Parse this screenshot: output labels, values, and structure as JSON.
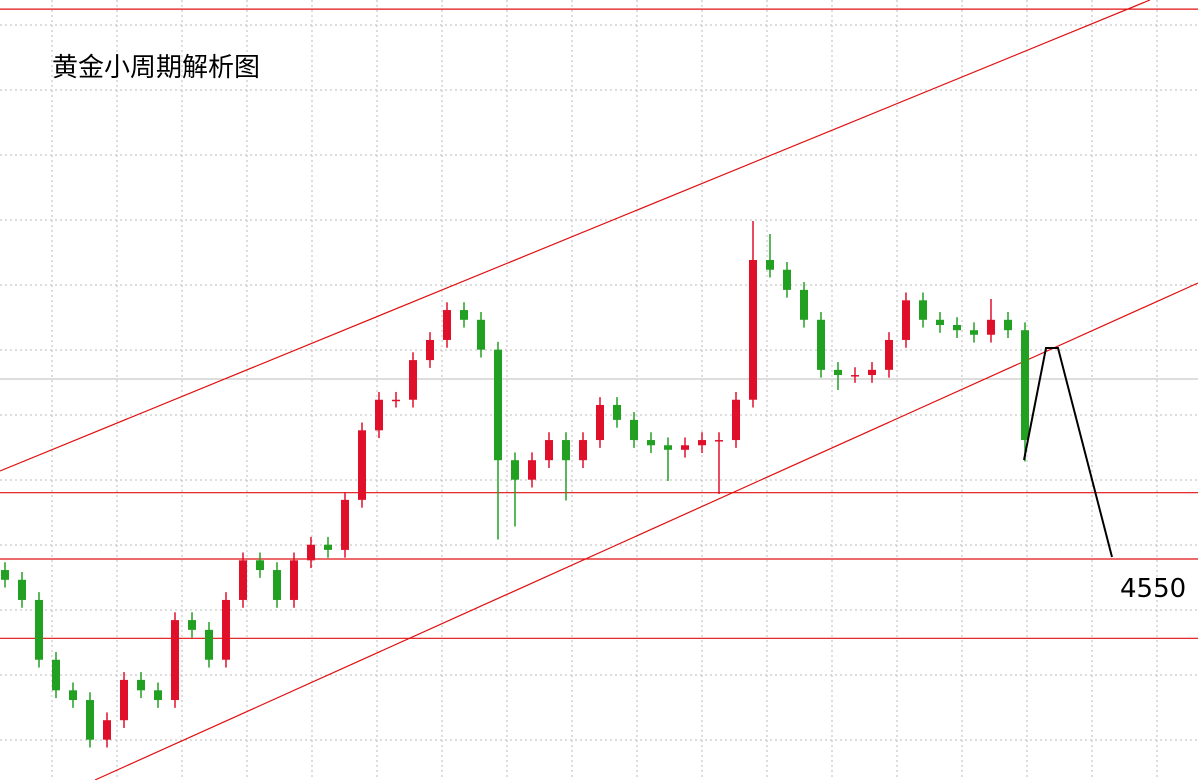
{
  "chart_data": {
    "type": "candlestick",
    "title": "黄金小周期解析图",
    "ylim": [
      4516,
      4636
    ],
    "up_color": "#e0102a",
    "down_color": "#22a022",
    "grid": true,
    "ohlc": [
      [
        4548.3,
        4549.5,
        4545.6,
        4546.8
      ],
      [
        4546.8,
        4548.0,
        4542.5,
        4543.7
      ],
      [
        4543.7,
        4544.9,
        4533.3,
        4534.5
      ],
      [
        4534.5,
        4535.7,
        4528.6,
        4529.8
      ],
      [
        4529.8,
        4531.0,
        4527.1,
        4528.3
      ],
      [
        4528.3,
        4529.5,
        4521.0,
        4522.2
      ],
      [
        4522.2,
        4526.4,
        4521.0,
        4525.2
      ],
      [
        4525.2,
        4532.6,
        4524.0,
        4531.4
      ],
      [
        4531.4,
        4532.6,
        4528.6,
        4529.8
      ],
      [
        4529.8,
        4531.0,
        4527.1,
        4528.3
      ],
      [
        4528.3,
        4541.8,
        4527.1,
        4540.6
      ],
      [
        4540.6,
        4541.8,
        4537.9,
        4539.1
      ],
      [
        4539.1,
        4540.3,
        4533.3,
        4534.5
      ],
      [
        4534.5,
        4544.9,
        4533.3,
        4543.7
      ],
      [
        4543.7,
        4551.0,
        4542.5,
        4549.8
      ],
      [
        4549.8,
        4551.0,
        4547.1,
        4548.3
      ],
      [
        4548.3,
        4549.5,
        4542.5,
        4543.7
      ],
      [
        4543.7,
        4551.0,
        4542.5,
        4549.8
      ],
      [
        4549.8,
        4553.4,
        4548.6,
        4552.2
      ],
      [
        4552.2,
        4553.4,
        4550.2,
        4551.4
      ],
      [
        4551.4,
        4560.3,
        4550.2,
        4559.1
      ],
      [
        4559.1,
        4571.0,
        4557.9,
        4569.8
      ],
      [
        4569.8,
        4575.7,
        4568.6,
        4574.5
      ],
      [
        4574.5,
        4575.7,
        4573.3,
        4574.5
      ],
      [
        4574.5,
        4581.8,
        4573.3,
        4580.6
      ],
      [
        4580.6,
        4584.9,
        4579.4,
        4583.7
      ],
      [
        4583.7,
        4589.5,
        4582.5,
        4588.3
      ],
      [
        4588.3,
        4589.5,
        4585.6,
        4586.8
      ],
      [
        4586.8,
        4588.0,
        4581.0,
        4582.2
      ],
      [
        4582.2,
        4583.4,
        4553.0,
        4565.2
      ],
      [
        4565.2,
        4566.4,
        4555.0,
        4562.2
      ],
      [
        4562.2,
        4566.4,
        4561.0,
        4565.2
      ],
      [
        4565.2,
        4569.5,
        4564.0,
        4568.3
      ],
      [
        4568.3,
        4569.5,
        4559.0,
        4565.2
      ],
      [
        4565.2,
        4569.5,
        4564.0,
        4568.3
      ],
      [
        4568.3,
        4574.9,
        4567.1,
        4573.7
      ],
      [
        4573.7,
        4574.9,
        4570.2,
        4571.4
      ],
      [
        4571.4,
        4572.6,
        4567.1,
        4568.3
      ],
      [
        4568.3,
        4569.5,
        4566.3,
        4567.5
      ],
      [
        4567.5,
        4568.7,
        4562.0,
        4566.8
      ],
      [
        4566.8,
        4568.7,
        4565.6,
        4567.5
      ],
      [
        4567.5,
        4569.5,
        4566.3,
        4568.3
      ],
      [
        4568.3,
        4569.5,
        4560.0,
        4568.3
      ],
      [
        4568.3,
        4575.7,
        4567.1,
        4574.5
      ],
      [
        4574.5,
        4602.0,
        4573.3,
        4596.0
      ],
      [
        4596.0,
        4600.0,
        4593.3,
        4594.5
      ],
      [
        4594.5,
        4595.7,
        4590.2,
        4591.4
      ],
      [
        4591.4,
        4592.6,
        4585.6,
        4586.8
      ],
      [
        4586.8,
        4588.0,
        4577.9,
        4579.1
      ],
      [
        4579.1,
        4580.3,
        4576.0,
        4578.3
      ],
      [
        4578.3,
        4579.5,
        4577.1,
        4578.3
      ],
      [
        4578.3,
        4580.3,
        4577.1,
        4579.1
      ],
      [
        4579.1,
        4584.9,
        4577.9,
        4583.7
      ],
      [
        4583.7,
        4591.0,
        4582.5,
        4589.8
      ],
      [
        4589.8,
        4591.0,
        4585.6,
        4586.8
      ],
      [
        4586.8,
        4588.0,
        4584.8,
        4586.0
      ],
      [
        4586.0,
        4587.2,
        4584.0,
        4585.2
      ],
      [
        4585.2,
        4586.4,
        4583.3,
        4584.5
      ],
      [
        4584.5,
        4590.0,
        4583.3,
        4586.8
      ],
      [
        4586.8,
        4588.0,
        4584.0,
        4585.2
      ],
      [
        4585.2,
        4586.4,
        4565.0,
        4568.3
      ]
    ],
    "hlines": [
      4634.6,
      4560.2,
      {
        "value": 4550,
        "label": "4550"
      },
      4537.8
    ]
  }
}
